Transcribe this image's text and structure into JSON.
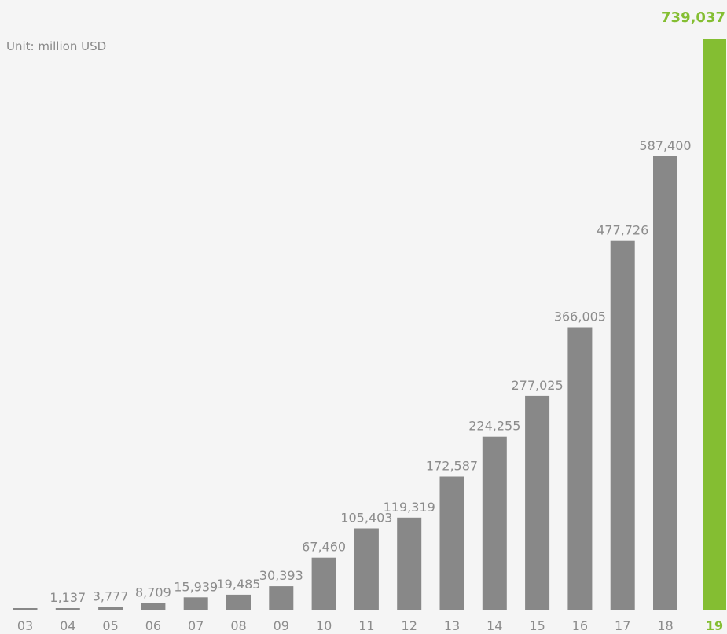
{
  "unit_label": "Unit: million USD",
  "colors": {
    "bar": "#888888",
    "highlight": "#84be32",
    "value_label": "#8c8c8c",
    "axis_label": "#8c8c8c",
    "background": "#f5f5f5"
  },
  "chart_data": {
    "type": "bar",
    "categories": [
      "03",
      "04",
      "05",
      "06",
      "07",
      "08",
      "09",
      "10",
      "11",
      "12",
      "13",
      "14",
      "15",
      "16",
      "17",
      "18",
      "19"
    ],
    "values": [
      0,
      1137,
      3777,
      8709,
      15939,
      19485,
      30393,
      67460,
      105403,
      119319,
      172587,
      224255,
      277025,
      366005,
      477726,
      587400,
      739037
    ],
    "value_labels": [
      "",
      "1,137",
      "3,777",
      "8,709",
      "15,939",
      "19,485",
      "30,393",
      "67,460",
      "105,403",
      "119,319",
      "172,587",
      "224,255",
      "277,025",
      "366,005",
      "477,726",
      "587,400",
      "739,037"
    ],
    "highlight_category": "19",
    "title": "",
    "xlabel": "",
    "ylabel": "",
    "ylim": [
      0,
      739037
    ],
    "grid": false,
    "legend": "none"
  }
}
